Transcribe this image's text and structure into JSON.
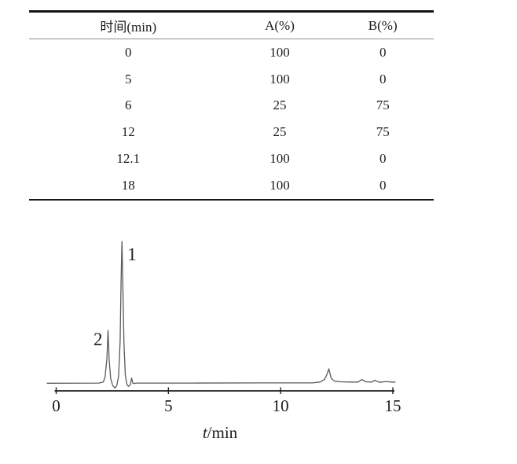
{
  "table": {
    "columns": [
      "时间(min)",
      "A(%)",
      "B(%)"
    ],
    "rows": [
      [
        "0",
        "100",
        "0"
      ],
      [
        "5",
        "100",
        "0"
      ],
      [
        "6",
        "25",
        "75"
      ],
      [
        "12",
        "25",
        "75"
      ],
      [
        "12.1",
        "100",
        "0"
      ],
      [
        "18",
        "100",
        "0"
      ]
    ]
  },
  "chart_data": {
    "type": "line",
    "title": "",
    "xlabel": "t/min",
    "ylabel": "",
    "xlim": [
      0,
      15
    ],
    "xticks": [
      "0",
      "5",
      "10",
      "15"
    ],
    "grid": false,
    "trace_color": "#5a5a5a",
    "axis_color": "#1c1c1c",
    "peaks": [
      {
        "label": "1",
        "t": 2.93,
        "height": 1.0,
        "label_side": "right"
      },
      {
        "label": "2",
        "t": 2.31,
        "height": 0.375,
        "label_side": "left"
      },
      {
        "label": "",
        "t": 12.15,
        "height": 0.105,
        "label_side": "none"
      }
    ],
    "trace": [
      [
        -0.4,
        0.004
      ],
      [
        1.9,
        0.005
      ],
      [
        2.1,
        0.012
      ],
      [
        2.18,
        0.05
      ],
      [
        2.26,
        0.18
      ],
      [
        2.31,
        0.375
      ],
      [
        2.36,
        0.17
      ],
      [
        2.43,
        0.035
      ],
      [
        2.52,
        -0.012
      ],
      [
        2.62,
        -0.03
      ],
      [
        2.7,
        -0.012
      ],
      [
        2.78,
        0.05
      ],
      [
        2.85,
        0.3
      ],
      [
        2.89,
        0.72
      ],
      [
        2.93,
        1.0
      ],
      [
        2.97,
        0.7
      ],
      [
        3.02,
        0.28
      ],
      [
        3.08,
        0.06
      ],
      [
        3.15,
        -0.005
      ],
      [
        3.22,
        -0.018
      ],
      [
        3.3,
        -0.008
      ],
      [
        3.36,
        0.04
      ],
      [
        3.42,
        0.002
      ],
      [
        3.6,
        0.005
      ],
      [
        6.0,
        0.005
      ],
      [
        9.0,
        0.006
      ],
      [
        11.4,
        0.006
      ],
      [
        11.75,
        0.012
      ],
      [
        11.95,
        0.03
      ],
      [
        12.05,
        0.06
      ],
      [
        12.15,
        0.105
      ],
      [
        12.25,
        0.04
      ],
      [
        12.4,
        0.018
      ],
      [
        12.7,
        0.014
      ],
      [
        13.1,
        0.012
      ],
      [
        13.45,
        0.012
      ],
      [
        13.62,
        0.03
      ],
      [
        13.8,
        0.014
      ],
      [
        14.05,
        0.012
      ],
      [
        14.2,
        0.025
      ],
      [
        14.4,
        0.01
      ],
      [
        14.7,
        0.016
      ],
      [
        14.95,
        0.012
      ],
      [
        15.1,
        0.012
      ]
    ]
  }
}
